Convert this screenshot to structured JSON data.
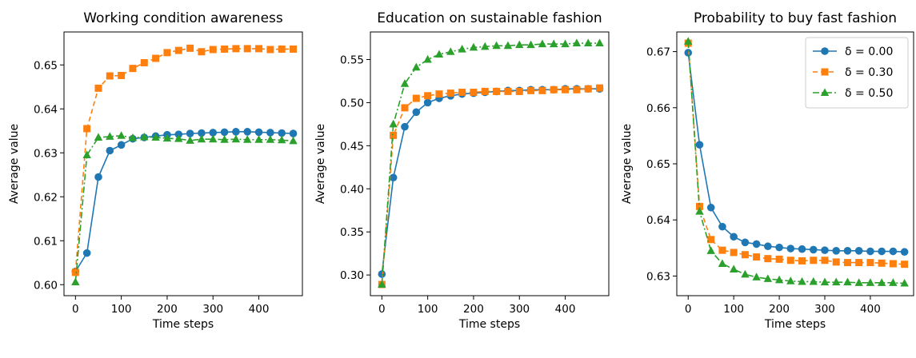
{
  "chart_data": [
    {
      "type": "line",
      "title": "Working condition awareness",
      "xlabel": "Time steps",
      "ylabel": "Average value",
      "xlim": [
        -25,
        495
      ],
      "ylim": [
        0.5975,
        0.6575
      ],
      "xticks": [
        0,
        100,
        200,
        300,
        400
      ],
      "xtick_labels": [
        "0",
        "100",
        "200",
        "300",
        "400"
      ],
      "yticks": [
        0.6,
        0.61,
        0.62,
        0.63,
        0.64,
        0.65
      ],
      "ytick_labels": [
        "0.60",
        "0.61",
        "0.62",
        "0.63",
        "0.64",
        "0.65"
      ],
      "x": [
        0,
        25,
        50,
        75,
        100,
        125,
        150,
        175,
        200,
        225,
        250,
        275,
        300,
        325,
        350,
        375,
        400,
        425,
        450,
        475
      ],
      "series": [
        {
          "name": "δ = 0.00",
          "color": "#1f77b4",
          "marker": "circle",
          "linestyle": "solid",
          "values": [
            0.603,
            0.6072,
            0.6245,
            0.6305,
            0.6318,
            0.6332,
            0.6335,
            0.6338,
            0.6341,
            0.6342,
            0.6344,
            0.6345,
            0.6346,
            0.6347,
            0.6348,
            0.6348,
            0.6347,
            0.6346,
            0.6345,
            0.6344
          ]
        },
        {
          "name": "δ = 0.30",
          "color": "#ff7f0e",
          "marker": "square",
          "linestyle": "dashed",
          "values": [
            0.6028,
            0.6355,
            0.6447,
            0.6475,
            0.6476,
            0.6492,
            0.6505,
            0.6515,
            0.6528,
            0.6533,
            0.6538,
            0.653,
            0.6535,
            0.6536,
            0.6537,
            0.6537,
            0.6537,
            0.6535,
            0.6536,
            0.6536
          ]
        },
        {
          "name": "δ = 0.50",
          "color": "#2ca02c",
          "marker": "triangle",
          "linestyle": "dashdot",
          "values": [
            0.6006,
            0.6295,
            0.6335,
            0.6337,
            0.6339,
            0.6334,
            0.6336,
            0.6335,
            0.6333,
            0.6332,
            0.6328,
            0.6331,
            0.6331,
            0.633,
            0.6331,
            0.633,
            0.633,
            0.633,
            0.6329,
            0.6327
          ]
        }
      ],
      "legend": false,
      "grid": false
    },
    {
      "type": "line",
      "title": "Education on sustainable fashion",
      "xlabel": "Time steps",
      "ylabel": "Average value",
      "xlim": [
        -25,
        495
      ],
      "ylim": [
        0.276,
        0.582
      ],
      "xticks": [
        0,
        100,
        200,
        300,
        400
      ],
      "xtick_labels": [
        "0",
        "100",
        "200",
        "300",
        "400"
      ],
      "yticks": [
        0.3,
        0.35,
        0.4,
        0.45,
        0.5,
        0.55
      ],
      "ytick_labels": [
        "0.30",
        "0.35",
        "0.40",
        "0.45",
        "0.50",
        "0.55"
      ],
      "x": [
        0,
        25,
        50,
        75,
        100,
        125,
        150,
        175,
        200,
        225,
        250,
        275,
        300,
        325,
        350,
        375,
        400,
        425,
        450,
        475
      ],
      "series": [
        {
          "name": "δ = 0.00",
          "color": "#1f77b4",
          "marker": "circle",
          "linestyle": "solid",
          "values": [
            0.301,
            0.413,
            0.472,
            0.489,
            0.5,
            0.505,
            0.508,
            0.51,
            0.511,
            0.512,
            0.513,
            0.514,
            0.514,
            0.515,
            0.515,
            0.515,
            0.516,
            0.516,
            0.516,
            0.516
          ]
        },
        {
          "name": "δ = 0.30",
          "color": "#ff7f0e",
          "marker": "square",
          "linestyle": "dashed",
          "values": [
            0.289,
            0.462,
            0.494,
            0.505,
            0.508,
            0.51,
            0.511,
            0.512,
            0.512,
            0.513,
            0.513,
            0.513,
            0.513,
            0.514,
            0.514,
            0.515,
            0.515,
            0.515,
            0.516,
            0.517
          ]
        },
        {
          "name": "δ = 0.50",
          "color": "#2ca02c",
          "marker": "triangle",
          "linestyle": "dashdot",
          "values": [
            0.289,
            0.475,
            0.522,
            0.541,
            0.55,
            0.556,
            0.559,
            0.562,
            0.564,
            0.565,
            0.566,
            0.566,
            0.567,
            0.567,
            0.568,
            0.568,
            0.568,
            0.569,
            0.569,
            0.569
          ]
        }
      ],
      "legend": false,
      "grid": false
    },
    {
      "type": "line",
      "title": "Probability to buy fast fashion",
      "xlabel": "Time steps",
      "ylabel": "Average value",
      "xlim": [
        -25,
        495
      ],
      "ylim": [
        0.6265,
        0.6735
      ],
      "xticks": [
        0,
        100,
        200,
        300,
        400
      ],
      "xtick_labels": [
        "0",
        "100",
        "200",
        "300",
        "400"
      ],
      "yticks": [
        0.63,
        0.64,
        0.65,
        0.66,
        0.67
      ],
      "ytick_labels": [
        "0.63",
        "0.64",
        "0.65",
        "0.66",
        "0.67"
      ],
      "x": [
        0,
        25,
        50,
        75,
        100,
        125,
        150,
        175,
        200,
        225,
        250,
        275,
        300,
        325,
        350,
        375,
        400,
        425,
        450,
        475
      ],
      "series": [
        {
          "name": "δ = 0.00",
          "color": "#1f77b4",
          "marker": "circle",
          "linestyle": "solid",
          "values": [
            0.6698,
            0.6534,
            0.6422,
            0.6388,
            0.637,
            0.636,
            0.6357,
            0.6353,
            0.6351,
            0.6349,
            0.6348,
            0.6347,
            0.6346,
            0.6345,
            0.6345,
            0.6345,
            0.6344,
            0.6344,
            0.6344,
            0.6343
          ]
        },
        {
          "name": "δ = 0.30",
          "color": "#ff7f0e",
          "marker": "square",
          "linestyle": "dashed",
          "values": [
            0.6715,
            0.6424,
            0.6365,
            0.6346,
            0.6342,
            0.6338,
            0.6334,
            0.6331,
            0.633,
            0.6328,
            0.6327,
            0.6328,
            0.6328,
            0.6325,
            0.6324,
            0.6324,
            0.6324,
            0.6323,
            0.6322,
            0.6321
          ]
        },
        {
          "name": "δ = 0.50",
          "color": "#2ca02c",
          "marker": "triangle",
          "linestyle": "dashdot",
          "values": [
            0.6718,
            0.6415,
            0.6345,
            0.6322,
            0.6312,
            0.6303,
            0.6298,
            0.6295,
            0.6293,
            0.6291,
            0.629,
            0.629,
            0.6289,
            0.6289,
            0.6289,
            0.6288,
            0.6288,
            0.6288,
            0.6288,
            0.6287
          ]
        }
      ],
      "legend": true,
      "legend_position": "top-right",
      "grid": false
    }
  ]
}
